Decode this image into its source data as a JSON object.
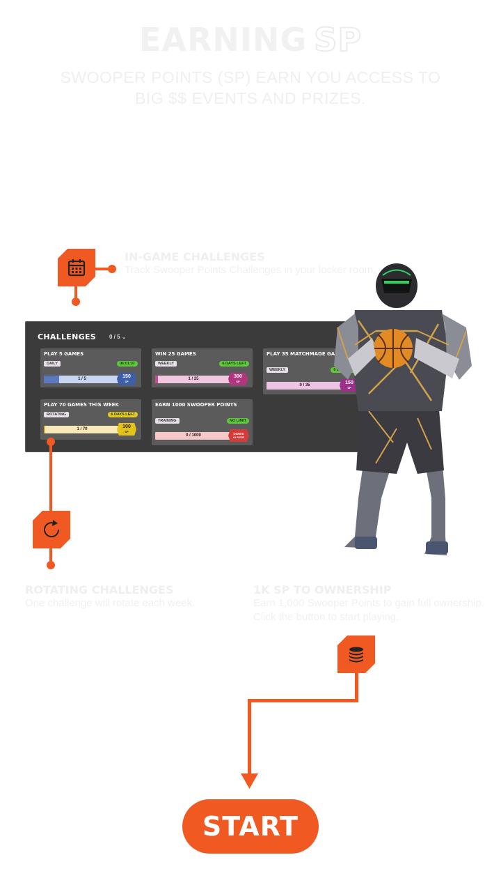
{
  "header": {
    "title_main": "EARNING",
    "title_outline": "SP",
    "subtitle": "SWOOPER POINTS (SP) EARN YOU ACCESS TO BIG $$ EVENTS AND PRIZES."
  },
  "features": {
    "in_game": {
      "title": "IN-GAME CHALLENGES",
      "desc": "Track Swooper Points Challenges in your locker room.",
      "icon": "calendar-icon"
    },
    "rotating": {
      "title": "ROTATING CHALLENGES",
      "desc": "One challenge will rotate each week.",
      "icon": "refresh-icon"
    },
    "ownership": {
      "title": "1K SP TO OWNERSHIP",
      "desc": "Earn 1,000 Swooper Points to gain full ownership. Click the button to start playing.",
      "icon": "coin-stack-icon"
    }
  },
  "challenges": {
    "title": "CHALLENGES",
    "count": "0 / 5",
    "cards": [
      {
        "title": "PLAY 5 GAMES",
        "tag": "DAILY",
        "time": "06:01:37",
        "progress": "1 / 5",
        "fraction": 0.2,
        "reward": "150",
        "reward_unit": "SP",
        "bar_color": "#c7d5f0",
        "fill_color": "#5b78c0",
        "reward_color": "#3e5ea8",
        "time_color": "#5ec93a"
      },
      {
        "title": "WIN 25 GAMES",
        "tag": "WEEKLY",
        "time": "6 DAYS LEFT",
        "progress": "1 / 25",
        "fraction": 0.04,
        "reward": "300",
        "reward_unit": "SP",
        "bar_color": "#f1c7df",
        "fill_color": "#c64b95",
        "reward_color": "#b2357f",
        "time_color": "#5ec93a"
      },
      {
        "title": "PLAY 35 MATCHMADE GAMES",
        "tag": "WEEKLY",
        "time": "6 DAYS LEFT",
        "progress": "0 / 35",
        "fraction": 0,
        "reward": "150",
        "reward_unit": "SP",
        "bar_color": "#ecc3e2",
        "fill_color": "#b33c9a",
        "reward_color": "#9c2f88",
        "time_color": "#5ec93a"
      },
      {
        "title": "PLAY 70 GAMES THIS WEEK",
        "tag": "ROTATING",
        "time": "6 DAYS LEFT",
        "progress": "1 / 70",
        "fraction": 0.014,
        "reward": "100",
        "reward_unit": "SP",
        "bar_color": "#fae9b8",
        "fill_color": "#e0b023",
        "reward_color": "#e3c21b",
        "time_color": "#e6c71a"
      },
      {
        "title": "EARN 1000 SWOOPER POINTS",
        "tag": "TRAINING",
        "time": "NO LIMIT",
        "progress": "0 / 1000",
        "fraction": 0,
        "reward": "OWNED PLAYER",
        "reward_unit": "",
        "bar_color": "#f5c7c7",
        "fill_color": "#d43b3b",
        "reward_color": "#d43b3b",
        "time_color": "#5ec93a"
      }
    ]
  },
  "start": {
    "label": "START"
  },
  "colors": {
    "accent": "#f05a22",
    "panel": "#3b3b3b",
    "card": "#5b5b5b"
  }
}
